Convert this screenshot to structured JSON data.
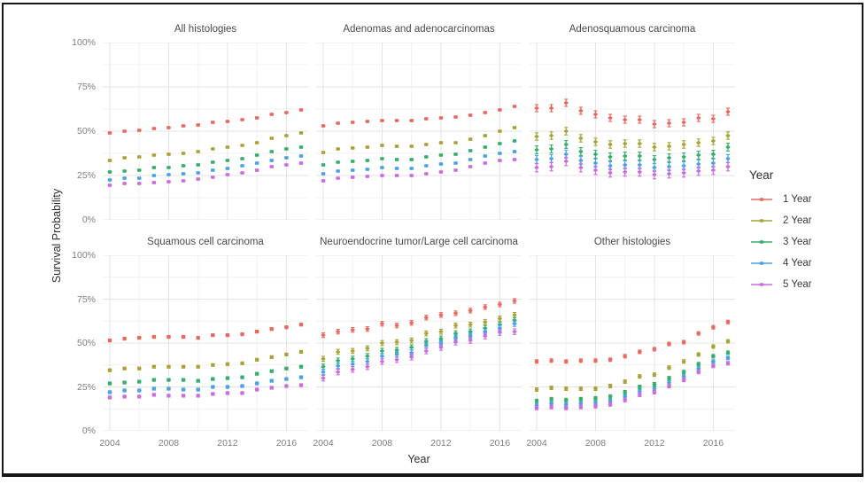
{
  "window": {
    "background": "#ffffff",
    "frame_border_color": "#161616"
  },
  "chart_data": {
    "type": "scatter",
    "subtype": "faceted-pointrange",
    "xlabel": "Year",
    "ylabel": "Survival Probability",
    "x": [
      2004,
      2005,
      2006,
      2007,
      2008,
      2009,
      2010,
      2011,
      2012,
      2013,
      2014,
      2015,
      2016,
      2017
    ],
    "x_ticks": [
      2004,
      2008,
      2012,
      2016
    ],
    "x_minor": [
      2006,
      2010,
      2014
    ],
    "y_ticks": [
      0,
      25,
      50,
      75,
      100
    ],
    "y_tick_labels": [
      "0%",
      "25%",
      "50%",
      "75%",
      "100%"
    ],
    "y_minor": [
      12.5,
      37.5,
      62.5,
      87.5
    ],
    "ylim": [
      0,
      100
    ],
    "grid": {
      "major_color": "#e3e3e3",
      "minor_color": "#f1f1f1"
    },
    "legend": {
      "title": "Year",
      "position": "right",
      "entries": [
        "1 Year",
        "2 Year",
        "3 Year",
        "4 Year",
        "5 Year"
      ]
    },
    "series_names": [
      "1 Year",
      "2 Year",
      "3 Year",
      "4 Year",
      "5 Year"
    ],
    "series_colors": [
      "#E8695E",
      "#A6A438",
      "#35AE6B",
      "#4AA2E6",
      "#CB6CDD"
    ],
    "facets": [
      {
        "title": "All histologies",
        "errors": [
          0.6,
          0.6,
          0.6,
          0.6,
          0.6
        ],
        "series": [
          [
            49,
            50,
            50.5,
            51.5,
            52,
            53,
            53.5,
            55,
            55.5,
            56.5,
            57.5,
            59.5,
            60.5,
            62
          ],
          [
            33.5,
            35,
            35.5,
            36.5,
            37,
            37.5,
            38.5,
            40,
            41,
            42,
            43.5,
            46,
            47.5,
            49
          ],
          [
            27,
            27.5,
            28,
            29.5,
            29.5,
            30.5,
            31,
            32.5,
            33.5,
            34.5,
            36.5,
            38.5,
            40,
            41
          ],
          [
            22.5,
            23.5,
            23.5,
            25,
            25.5,
            26,
            26.5,
            28,
            29,
            30.5,
            32,
            33.5,
            35,
            36
          ],
          [
            19.5,
            20.5,
            20.5,
            21,
            21.5,
            22,
            23,
            24,
            25.5,
            26.5,
            28,
            30,
            31,
            32
          ]
        ]
      },
      {
        "title": "Adenomas and adenocarcinomas",
        "errors": [
          0.6,
          0.6,
          0.6,
          0.6,
          0.6
        ],
        "series": [
          [
            53,
            54.5,
            55,
            55.5,
            56,
            56,
            56,
            57,
            57.5,
            58,
            59,
            60.5,
            62,
            64
          ],
          [
            38,
            40,
            40.5,
            41,
            42,
            41.5,
            41.5,
            42.5,
            43.5,
            43.5,
            45.5,
            47.5,
            50,
            52
          ],
          [
            31,
            32.5,
            33,
            33.5,
            34.5,
            34,
            34,
            35.5,
            36.5,
            37,
            39,
            41,
            43,
            44.5
          ],
          [
            26,
            27.5,
            28,
            28.5,
            29.5,
            29,
            29,
            30.5,
            31.5,
            32,
            34,
            36,
            37.5,
            38.5
          ],
          [
            22,
            23.5,
            24,
            24.5,
            25,
            25,
            25,
            26,
            27,
            28,
            30,
            32,
            33.5,
            34
          ]
        ]
      },
      {
        "title": "Adenosquamous carcinoma",
        "errors": [
          2.0,
          2.1,
          2.2,
          2.3,
          2.4
        ],
        "series": [
          [
            63,
            63,
            66,
            61.5,
            59.5,
            57.5,
            56.5,
            56.5,
            54,
            54.5,
            55,
            57.5,
            57,
            61
          ],
          [
            47,
            47.5,
            50,
            46,
            44,
            42.5,
            43,
            43,
            41,
            41.5,
            42.5,
            43.5,
            44.5,
            47.5
          ],
          [
            39.5,
            40,
            42.5,
            38.5,
            37,
            35.5,
            36,
            36,
            34,
            35,
            35.5,
            36.5,
            37,
            41
          ],
          [
            34,
            34.5,
            37,
            33.5,
            32,
            30.5,
            31,
            31,
            29.5,
            30,
            30.5,
            31.5,
            32,
            34.5
          ],
          [
            29.5,
            30,
            33,
            29.5,
            28,
            26.5,
            27,
            27,
            25.5,
            26,
            26.5,
            27.5,
            28,
            30
          ]
        ]
      },
      {
        "title": "Squamous cell carcinoma",
        "errors": [
          0.8,
          0.8,
          0.8,
          0.8,
          0.8
        ],
        "series": [
          [
            51.5,
            52.5,
            53,
            53.5,
            53.5,
            53.5,
            53,
            54.5,
            54.5,
            55,
            56.5,
            58,
            59,
            60.5
          ],
          [
            34.5,
            35.5,
            35.5,
            36.5,
            36.5,
            36.5,
            36.5,
            37.5,
            38,
            38.5,
            40.5,
            42,
            43.5,
            45
          ],
          [
            27,
            27.5,
            28,
            29,
            29,
            29,
            28.5,
            29.5,
            30,
            30.5,
            32.5,
            34,
            35.5,
            36.5
          ],
          [
            22,
            23,
            23,
            24,
            24,
            23.5,
            23.5,
            25,
            25,
            25.5,
            27,
            28.5,
            29.5,
            30.5
          ],
          [
            19,
            19.5,
            19.5,
            20.5,
            20,
            20,
            20,
            21,
            21.5,
            21.5,
            23.5,
            24.5,
            25.5,
            26
          ]
        ]
      },
      {
        "title": "Neuroendocrine tumor/Large cell carcinoma",
        "errors": [
          1.3,
          1.4,
          1.5,
          1.5,
          1.6
        ],
        "series": [
          [
            54.5,
            56.5,
            57.5,
            58,
            61,
            60,
            61.5,
            64.5,
            66,
            67,
            68.5,
            70.5,
            72,
            74
          ],
          [
            41,
            45,
            45.5,
            47,
            50,
            50.5,
            51.5,
            55.5,
            56.5,
            60,
            60.5,
            62,
            64,
            66
          ],
          [
            36.5,
            40,
            41,
            42.5,
            45.5,
            46,
            47.5,
            51,
            52.5,
            55.5,
            56.5,
            58.5,
            60.5,
            63
          ],
          [
            33.5,
            37,
            38,
            39.5,
            42.5,
            43.5,
            44.5,
            48.5,
            50,
            53,
            54,
            56.5,
            58.5,
            61
          ],
          [
            30,
            33.5,
            35,
            36.5,
            39.5,
            40.5,
            42,
            45.5,
            47.5,
            50.5,
            51.5,
            54,
            56,
            56.5
          ]
        ]
      },
      {
        "title": "Other histologies",
        "errors": [
          1.0,
          1.0,
          1.0,
          1.0,
          1.0
        ],
        "series": [
          [
            39.5,
            40,
            39.5,
            40,
            40,
            40.5,
            42.5,
            45,
            46.5,
            49.5,
            50.5,
            55.5,
            59,
            62
          ],
          [
            23.5,
            24.5,
            24,
            24,
            24,
            25.5,
            28,
            31,
            32,
            36,
            39.5,
            43.5,
            48,
            51
          ],
          [
            17,
            18,
            17.5,
            18,
            18.5,
            19.5,
            22,
            25,
            26.5,
            30,
            33.5,
            38,
            42.5,
            44.5
          ],
          [
            14.5,
            15.5,
            15,
            15.5,
            16,
            17,
            19.5,
            22.5,
            24,
            27.5,
            31,
            35.5,
            39.5,
            41.5
          ],
          [
            13,
            13.5,
            13,
            13.5,
            14,
            15,
            17.5,
            20.5,
            22,
            25.5,
            29,
            33.5,
            37,
            38.5
          ]
        ]
      }
    ]
  }
}
